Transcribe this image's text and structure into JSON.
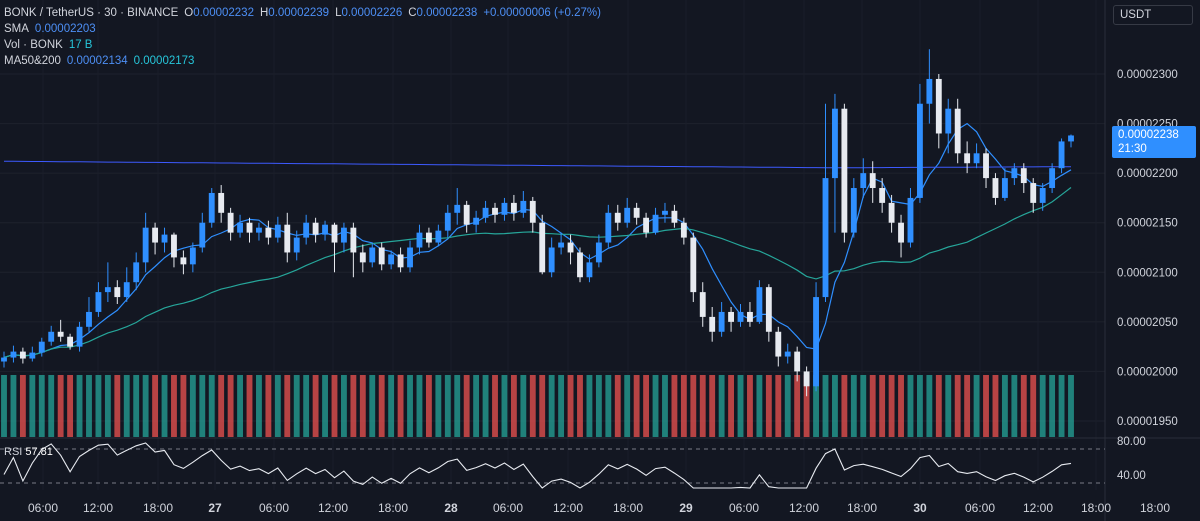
{
  "legend": {
    "symbol": "BONK / TetherUS · 30 · BINANCE",
    "o_label": "O",
    "o": "0.00002232",
    "h_label": "H",
    "h": "0.00002239",
    "l_label": "L",
    "l": "0.00002226",
    "c_label": "C",
    "c": "0.00002238",
    "change": "+0.00000006 (+0.27%)",
    "sma_label": "SMA",
    "sma": "0.00002203",
    "vol_label": "Vol · BONK",
    "vol": "17 B",
    "ma_label": "MA50&200",
    "ma50": "0.00002134",
    "ma200": "0.00002173"
  },
  "currency": "USDT",
  "last_price": {
    "value": "0.00002238",
    "countdown": "21:30"
  },
  "rsi": {
    "label": "RSI",
    "value": "57.81"
  },
  "colors": {
    "background": "#131722",
    "up": "#2f8fff",
    "down": "#e7eaf0",
    "sma": "#2f8fff",
    "ma50": "#26a69a",
    "ma200": "#3d5afe",
    "vol_up": "#26a69a",
    "vol_down": "#ef5350",
    "rsi": "#e7eaf0"
  },
  "chart_data": {
    "type": "candlestick",
    "y_ticks": [
      "0.00002300",
      "0.00002250",
      "0.00002200",
      "0.00002150",
      "0.00002100",
      "0.00002050",
      "0.00002000",
      "0.00001950"
    ],
    "y_range": [
      1.935e-05,
      2.325e-05
    ],
    "rsi_ticks": [
      "80.00",
      "40.00"
    ],
    "x_ticks": [
      "06:00",
      "12:00",
      "18:00",
      "27",
      "06:00",
      "12:00",
      "18:00",
      "28",
      "06:00",
      "12:00",
      "18:00",
      "29",
      "06:00",
      "12:00",
      "18:00",
      "30",
      "06:00",
      "12:00",
      "18:00"
    ],
    "candles": [
      {
        "o": 2.01e-05,
        "c": 2.014e-05,
        "h": 2.02e-05,
        "l": 2.004e-05
      },
      {
        "o": 2.014e-05,
        "c": 2.02e-05,
        "h": 2.026e-05,
        "l": 2.009e-05
      },
      {
        "o": 2.02e-05,
        "c": 2.013e-05,
        "h": 2.024e-05,
        "l": 2.008e-05
      },
      {
        "o": 2.013e-05,
        "c": 2.019e-05,
        "h": 2.025e-05,
        "l": 2.01e-05
      },
      {
        "o": 2.019e-05,
        "c": 2.03e-05,
        "h": 2.034e-05,
        "l": 2.015e-05
      },
      {
        "o": 2.03e-05,
        "c": 2.04e-05,
        "h": 2.046e-05,
        "l": 2.026e-05
      },
      {
        "o": 2.04e-05,
        "c": 2.035e-05,
        "h": 2.052e-05,
        "l": 2.03e-05
      },
      {
        "o": 2.035e-05,
        "c": 2.025e-05,
        "h": 2.038e-05,
        "l": 2.022e-05
      },
      {
        "o": 2.025e-05,
        "c": 2.045e-05,
        "h": 2.05e-05,
        "l": 2.02e-05
      },
      {
        "o": 2.045e-05,
        "c": 2.06e-05,
        "h": 2.075e-05,
        "l": 2.04e-05
      },
      {
        "o": 2.06e-05,
        "c": 2.08e-05,
        "h": 2.09e-05,
        "l": 2.055e-05
      },
      {
        "o": 2.08e-05,
        "c": 2.085e-05,
        "h": 2.11e-05,
        "l": 2.07e-05
      },
      {
        "o": 2.085e-05,
        "c": 2.075e-05,
        "h": 2.092e-05,
        "l": 2.068e-05
      },
      {
        "o": 2.075e-05,
        "c": 2.09e-05,
        "h": 2.105e-05,
        "l": 2.07e-05
      },
      {
        "o": 2.09e-05,
        "c": 2.11e-05,
        "h": 2.12e-05,
        "l": 2.082e-05
      },
      {
        "o": 2.11e-05,
        "c": 2.145e-05,
        "h": 2.16e-05,
        "l": 2.1e-05
      },
      {
        "o": 2.145e-05,
        "c": 2.13e-05,
        "h": 2.15e-05,
        "l": 2.118e-05
      },
      {
        "o": 2.13e-05,
        "c": 2.138e-05,
        "h": 2.145e-05,
        "l": 2.12e-05
      },
      {
        "o": 2.138e-05,
        "c": 2.115e-05,
        "h": 2.14e-05,
        "l": 2.105e-05
      },
      {
        "o": 2.115e-05,
        "c": 2.108e-05,
        "h": 2.122e-05,
        "l": 2.098e-05
      },
      {
        "o": 2.108e-05,
        "c": 2.125e-05,
        "h": 2.13e-05,
        "l": 2.1e-05
      },
      {
        "o": 2.125e-05,
        "c": 2.15e-05,
        "h": 2.16e-05,
        "l": 2.12e-05
      },
      {
        "o": 2.15e-05,
        "c": 2.18e-05,
        "h": 2.185e-05,
        "l": 2.145e-05
      },
      {
        "o": 2.18e-05,
        "c": 2.16e-05,
        "h": 2.188e-05,
        "l": 2.15e-05
      },
      {
        "o": 2.16e-05,
        "c": 2.14e-05,
        "h": 2.165e-05,
        "l": 2.132e-05
      },
      {
        "o": 2.14e-05,
        "c": 2.15e-05,
        "h": 2.158e-05,
        "l": 2.135e-05
      },
      {
        "o": 2.15e-05,
        "c": 2.14e-05,
        "h": 2.155e-05,
        "l": 2.13e-05
      },
      {
        "o": 2.14e-05,
        "c": 2.145e-05,
        "h": 2.15e-05,
        "l": 2.132e-05
      },
      {
        "o": 2.145e-05,
        "c": 2.135e-05,
        "h": 2.152e-05,
        "l": 2.128e-05
      },
      {
        "o": 2.135e-05,
        "c": 2.148e-05,
        "h": 2.156e-05,
        "l": 2.13e-05
      },
      {
        "o": 2.148e-05,
        "c": 2.12e-05,
        "h": 2.16e-05,
        "l": 2.11e-05
      },
      {
        "o": 2.12e-05,
        "c": 2.135e-05,
        "h": 2.142e-05,
        "l": 2.112e-05
      },
      {
        "o": 2.135e-05,
        "c": 2.15e-05,
        "h": 2.158e-05,
        "l": 2.128e-05
      },
      {
        "o": 2.15e-05,
        "c": 2.138e-05,
        "h": 2.155e-05,
        "l": 2.13e-05
      },
      {
        "o": 2.138e-05,
        "c": 2.148e-05,
        "h": 2.152e-05,
        "l": 2.132e-05
      },
      {
        "o": 2.148e-05,
        "c": 2.13e-05,
        "h": 2.15e-05,
        "l": 2.1e-05
      },
      {
        "o": 2.13e-05,
        "c": 2.145e-05,
        "h": 2.15e-05,
        "l": 2.12e-05
      },
      {
        "o": 2.145e-05,
        "c": 2.12e-05,
        "h": 2.15e-05,
        "l": 2.095e-05
      },
      {
        "o": 2.12e-05,
        "c": 2.11e-05,
        "h": 2.128e-05,
        "l": 2.1e-05
      },
      {
        "o": 2.11e-05,
        "c": 2.125e-05,
        "h": 2.13e-05,
        "l": 2.105e-05
      },
      {
        "o": 2.125e-05,
        "c": 2.108e-05,
        "h": 2.13e-05,
        "l": 2.102e-05
      },
      {
        "o": 2.108e-05,
        "c": 2.118e-05,
        "h": 2.122e-05,
        "l": 2.103e-05
      },
      {
        "o": 2.118e-05,
        "c": 2.105e-05,
        "h": 2.125e-05,
        "l": 2.1e-05
      },
      {
        "o": 2.105e-05,
        "c": 2.125e-05,
        "h": 2.132e-05,
        "l": 2.1e-05
      },
      {
        "o": 2.125e-05,
        "c": 2.14e-05,
        "h": 2.148e-05,
        "l": 2.118e-05
      },
      {
        "o": 2.14e-05,
        "c": 2.13e-05,
        "h": 2.145e-05,
        "l": 2.125e-05
      },
      {
        "o": 2.13e-05,
        "c": 2.142e-05,
        "h": 2.148e-05,
        "l": 2.126e-05
      },
      {
        "o": 2.142e-05,
        "c": 2.16e-05,
        "h": 2.168e-05,
        "l": 2.135e-05
      },
      {
        "o": 2.16e-05,
        "c": 2.168e-05,
        "h": 2.185e-05,
        "l": 2.148e-05
      },
      {
        "o": 2.168e-05,
        "c": 2.148e-05,
        "h": 2.172e-05,
        "l": 2.14e-05
      },
      {
        "o": 2.148e-05,
        "c": 2.155e-05,
        "h": 2.162e-05,
        "l": 2.14e-05
      },
      {
        "o": 2.155e-05,
        "c": 2.165e-05,
        "h": 2.172e-05,
        "l": 2.15e-05
      },
      {
        "o": 2.165e-05,
        "c": 2.158e-05,
        "h": 2.17e-05,
        "l": 2.15e-05
      },
      {
        "o": 2.158e-05,
        "c": 2.17e-05,
        "h": 2.175e-05,
        "l": 2.152e-05
      },
      {
        "o": 2.17e-05,
        "c": 2.16e-05,
        "h": 2.178e-05,
        "l": 2.152e-05
      },
      {
        "o": 2.16e-05,
        "c": 2.172e-05,
        "h": 2.182e-05,
        "l": 2.155e-05
      },
      {
        "o": 2.172e-05,
        "c": 2.15e-05,
        "h": 2.176e-05,
        "l": 2.14e-05
      },
      {
        "o": 2.15e-05,
        "c": 2.1e-05,
        "h": 2.158e-05,
        "l": 2.098e-05
      },
      {
        "o": 2.1e-05,
        "c": 2.125e-05,
        "h": 2.135e-05,
        "l": 2.095e-05
      },
      {
        "o": 2.125e-05,
        "c": 2.13e-05,
        "h": 2.14e-05,
        "l": 2.118e-05
      },
      {
        "o": 2.13e-05,
        "c": 2.12e-05,
        "h": 2.138e-05,
        "l": 2.108e-05
      },
      {
        "o": 2.12e-05,
        "c": 2.095e-05,
        "h": 2.125e-05,
        "l": 2.09e-05
      },
      {
        "o": 2.095e-05,
        "c": 2.11e-05,
        "h": 2.118e-05,
        "l": 2.09e-05
      },
      {
        "o": 2.11e-05,
        "c": 2.13e-05,
        "h": 2.138e-05,
        "l": 2.105e-05
      },
      {
        "o": 2.13e-05,
        "c": 2.16e-05,
        "h": 2.168e-05,
        "l": 2.125e-05
      },
      {
        "o": 2.16e-05,
        "c": 2.15e-05,
        "h": 2.168e-05,
        "l": 2.142e-05
      },
      {
        "o": 2.15e-05,
        "c": 2.165e-05,
        "h": 2.175e-05,
        "l": 2.145e-05
      },
      {
        "o": 2.165e-05,
        "c": 2.155e-05,
        "h": 2.17e-05,
        "l": 2.148e-05
      },
      {
        "o": 2.155e-05,
        "c": 2.14e-05,
        "h": 2.16e-05,
        "l": 2.135e-05
      },
      {
        "o": 2.14e-05,
        "c": 2.158e-05,
        "h": 2.165e-05,
        "l": 2.138e-05
      },
      {
        "o": 2.158e-05,
        "c": 2.162e-05,
        "h": 2.17e-05,
        "l": 2.15e-05
      },
      {
        "o": 2.162e-05,
        "c": 2.15e-05,
        "h": 2.168e-05,
        "l": 2.145e-05
      },
      {
        "o": 2.15e-05,
        "c": 2.135e-05,
        "h": 2.155e-05,
        "l": 2.128e-05
      },
      {
        "o": 2.135e-05,
        "c": 2.08e-05,
        "h": 2.14e-05,
        "l": 2.07e-05
      },
      {
        "o": 2.08e-05,
        "c": 2.055e-05,
        "h": 2.09e-05,
        "l": 2.045e-05
      },
      {
        "o": 2.055e-05,
        "c": 2.04e-05,
        "h": 2.065e-05,
        "l": 2.03e-05
      },
      {
        "o": 2.04e-05,
        "c": 2.06e-05,
        "h": 2.07e-05,
        "l": 2.035e-05
      },
      {
        "o": 2.06e-05,
        "c": 2.05e-05,
        "h": 2.065e-05,
        "l": 2.04e-05
      },
      {
        "o": 2.05e-05,
        "c": 2.06e-05,
        "h": 2.068e-05,
        "l": 2.045e-05
      },
      {
        "o": 2.06e-05,
        "c": 2.05e-05,
        "h": 2.07e-05,
        "l": 2.045e-05
      },
      {
        "o": 2.05e-05,
        "c": 2.085e-05,
        "h": 2.092e-05,
        "l": 2.048e-05
      },
      {
        "o": 2.085e-05,
        "c": 2.04e-05,
        "h": 2.088e-05,
        "l": 2.03e-05
      },
      {
        "o": 2.04e-05,
        "c": 2.015e-05,
        "h": 2.045e-05,
        "l": 2.005e-05
      },
      {
        "o": 2.015e-05,
        "c": 2.02e-05,
        "h": 2.028e-05,
        "l": 2.008e-05
      },
      {
        "o": 2.02e-05,
        "c": 2e-05,
        "h": 2.025e-05,
        "l": 1.99e-05
      },
      {
        "o": 2e-05,
        "c": 1.985e-05,
        "h": 2.005e-05,
        "l": 1.975e-05
      },
      {
        "o": 1.985e-05,
        "c": 2.075e-05,
        "h": 2.09e-05,
        "l": 1.98e-05
      },
      {
        "o": 2.075e-05,
        "c": 2.195e-05,
        "h": 2.27e-05,
        "l": 2.07e-05
      },
      {
        "o": 2.195e-05,
        "c": 2.265e-05,
        "h": 2.28e-05,
        "l": 2.14e-05
      },
      {
        "o": 2.265e-05,
        "c": 2.14e-05,
        "h": 2.27e-05,
        "l": 2.13e-05
      },
      {
        "o": 2.14e-05,
        "c": 2.185e-05,
        "h": 2.195e-05,
        "l": 2.135e-05
      },
      {
        "o": 2.185e-05,
        "c": 2.2e-05,
        "h": 2.215e-05,
        "l": 2.175e-05
      },
      {
        "o": 2.2e-05,
        "c": 2.185e-05,
        "h": 2.212e-05,
        "l": 2.17e-05
      },
      {
        "o": 2.185e-05,
        "c": 2.17e-05,
        "h": 2.195e-05,
        "l": 2.16e-05
      },
      {
        "o": 2.17e-05,
        "c": 2.15e-05,
        "h": 2.178e-05,
        "l": 2.14e-05
      },
      {
        "o": 2.15e-05,
        "c": 2.13e-05,
        "h": 2.158e-05,
        "l": 2.115e-05
      },
      {
        "o": 2.13e-05,
        "c": 2.175e-05,
        "h": 2.185e-05,
        "l": 2.125e-05
      },
      {
        "o": 2.175e-05,
        "c": 2.27e-05,
        "h": 2.29e-05,
        "l": 2.17e-05
      },
      {
        "o": 2.27e-05,
        "c": 2.295e-05,
        "h": 2.325e-05,
        "l": 2.25e-05
      },
      {
        "o": 2.295e-05,
        "c": 2.24e-05,
        "h": 2.3e-05,
        "l": 2.225e-05
      },
      {
        "o": 2.24e-05,
        "c": 2.265e-05,
        "h": 2.275e-05,
        "l": 2.22e-05
      },
      {
        "o": 2.265e-05,
        "c": 2.22e-05,
        "h": 2.275e-05,
        "l": 2.21e-05
      },
      {
        "o": 2.22e-05,
        "c": 2.21e-05,
        "h": 2.232e-05,
        "l": 2.2e-05
      },
      {
        "o": 2.21e-05,
        "c": 2.22e-05,
        "h": 2.23e-05,
        "l": 2.205e-05
      },
      {
        "o": 2.22e-05,
        "c": 2.195e-05,
        "h": 2.225e-05,
        "l": 2.185e-05
      },
      {
        "o": 2.195e-05,
        "c": 2.175e-05,
        "h": 2.2e-05,
        "l": 2.168e-05
      },
      {
        "o": 2.175e-05,
        "c": 2.195e-05,
        "h": 2.205e-05,
        "l": 2.172e-05
      },
      {
        "o": 2.195e-05,
        "c": 2.205e-05,
        "h": 2.21e-05,
        "l": 2.188e-05
      },
      {
        "o": 2.205e-05,
        "c": 2.19e-05,
        "h": 2.21e-05,
        "l": 2.18e-05
      },
      {
        "o": 2.19e-05,
        "c": 2.17e-05,
        "h": 2.195e-05,
        "l": 2.16e-05
      },
      {
        "o": 2.17e-05,
        "c": 2.185e-05,
        "h": 2.19e-05,
        "l": 2.162e-05
      },
      {
        "o": 2.185e-05,
        "c": 2.205e-05,
        "h": 2.21e-05,
        "l": 2.18e-05
      },
      {
        "o": 2.205e-05,
        "c": 2.232e-05,
        "h": 2.235e-05,
        "l": 2.2e-05
      },
      {
        "o": 2.232e-05,
        "c": 2.238e-05,
        "h": 2.239e-05,
        "l": 2.226e-05
      }
    ]
  }
}
